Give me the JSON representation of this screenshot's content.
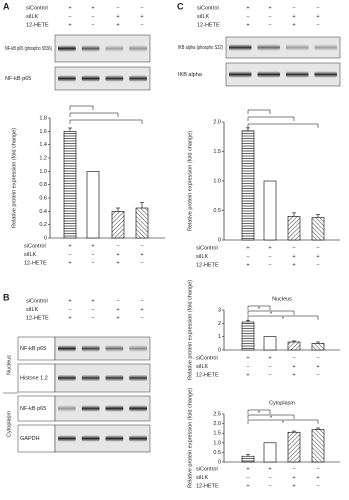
{
  "panel_labels": [
    "A",
    "C",
    "B"
  ],
  "conditions": [
    {
      "name": "siControl",
      "signs": [
        "+",
        "+",
        "−",
        "−"
      ]
    },
    {
      "name": "siILK",
      "signs": [
        "−",
        "−",
        "+",
        "+"
      ]
    },
    {
      "name": "12-HETE",
      "signs": [
        "+",
        "−",
        "+",
        "−"
      ]
    }
  ],
  "blots": {
    "a": [
      "NF-kB p65 (phospho S536)",
      "NF-kB p65"
    ],
    "c": [
      "IKB alpha (phospho S32)",
      "IKB alpha"
    ],
    "b": [
      "NF-kB p65",
      "Histone 1.2",
      "NF-kB p65",
      "GAPDH"
    ],
    "b_groups": [
      "Nucleus",
      "Cytoplasm"
    ]
  },
  "chart_data": [
    {
      "type": "bar",
      "y_label": "Relative protein expression (fold change)",
      "values": [
        1.6,
        1.0,
        0.4,
        0.45
      ],
      "errors": [
        0.05,
        0,
        0.05,
        0.08
      ],
      "ylim": [
        0,
        1.8
      ],
      "yticks": [
        0,
        0.2,
        0.4,
        0.6,
        0.8,
        {
          "value": 1,
          "label": "1.0"
        },
        1.2,
        1.4,
        1.6,
        1.8
      ],
      "patterns": [
        "hlines",
        "none",
        "diag",
        "diag2"
      ],
      "color": "#000000",
      "brackets": [
        [
          0,
          1
        ],
        [
          0,
          2
        ],
        [
          0,
          3
        ]
      ]
    },
    {
      "type": "bar",
      "y_label": "Relative protein expression (fold change)",
      "values": [
        1.85,
        1.0,
        0.4,
        0.38
      ],
      "errors": [
        0.05,
        0,
        0.06,
        0.05
      ],
      "ylim": [
        0,
        2
      ],
      "yticks": [
        0,
        0.5,
        {
          "value": 1,
          "label": "1.0"
        },
        1.5,
        {
          "value": 2,
          "label": "2.0"
        }
      ],
      "patterns": [
        "hlines",
        "none",
        "diag",
        "diag2"
      ],
      "color": "#000000",
      "brackets": [
        [
          0,
          1
        ],
        [
          0,
          2
        ],
        [
          0,
          3
        ]
      ]
    },
    {
      "type": "bar",
      "title": "Nucleus",
      "y_label": "Relative protein expression (fold change)",
      "values": [
        2.1,
        1.0,
        0.6,
        0.5
      ],
      "errors": [
        0.12,
        0,
        0.08,
        0.1
      ],
      "ylim": [
        0,
        3
      ],
      "yticks": [
        0,
        1,
        2,
        3
      ],
      "patterns": [
        "hlines",
        "none",
        "diag",
        "diag2"
      ],
      "color": "#000000",
      "brackets": [
        [
          0,
          1
        ],
        [
          0,
          2
        ],
        [
          0,
          3
        ]
      ],
      "bracket_labels": [
        "*",
        "*",
        "*"
      ]
    },
    {
      "type": "bar",
      "title": "Cytoplasm",
      "y_label": "Relative protein expression (fold change)",
      "values": [
        0.3,
        1.0,
        1.55,
        1.7
      ],
      "errors": [
        0.08,
        0,
        0.06,
        0.07
      ],
      "ylim": [
        0,
        2.5
      ],
      "yticks": [
        0,
        0.5,
        {
          "value": 1,
          "label": "1.0"
        },
        1.5,
        {
          "value": 2,
          "label": "2.0"
        },
        2.5
      ],
      "patterns": [
        "hlines",
        "none",
        "diag",
        "diag2"
      ],
      "color": "#000000",
      "brackets": [
        [
          0,
          1
        ],
        [
          0,
          2
        ],
        [
          0,
          3
        ]
      ],
      "bracket_labels": [
        "*",
        "*",
        "*"
      ]
    }
  ]
}
